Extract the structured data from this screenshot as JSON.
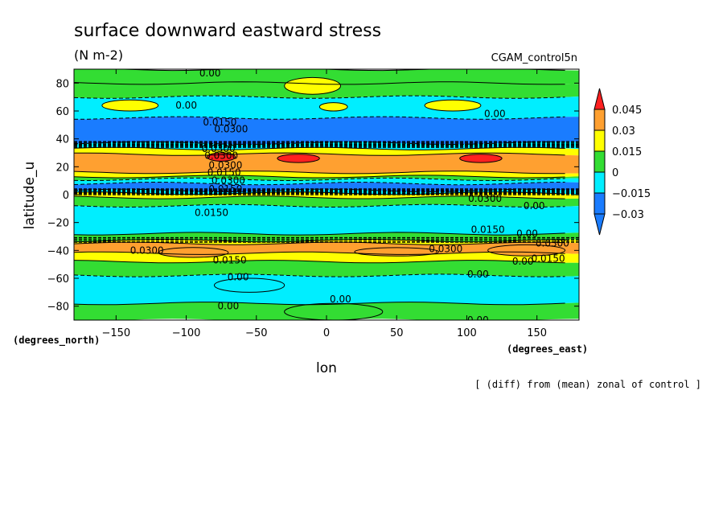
{
  "chart_data": {
    "type": "heatmap",
    "title": "surface downward eastward stress",
    "units": "(N m-2)",
    "dataset": "CGAM_control5n",
    "xlabel": "lon",
    "ylabel": "latitude_u",
    "x_units": "(degrees_east)",
    "y_units": "(degrees_north)",
    "footnote": "[ (diff) from (mean) zonal of control ]",
    "xlim": [
      -180,
      180
    ],
    "ylim": [
      -90,
      90
    ],
    "x_ticks": [
      -150,
      -100,
      -50,
      0,
      50,
      100,
      150
    ],
    "x_tick_labels": [
      "−150",
      "−100",
      "−50",
      "0",
      "50",
      "100",
      "150"
    ],
    "y_ticks": [
      80,
      60,
      40,
      20,
      0,
      -20,
      -40,
      -60,
      -80
    ],
    "y_tick_labels": [
      "80",
      "60",
      "40",
      "20",
      "0",
      "−20",
      "−40",
      "−60",
      "−80"
    ],
    "colorbar": {
      "levels": [
        0.045,
        0.03,
        0.015,
        0,
        -0.015,
        -0.03
      ],
      "labels": [
        "0.045",
        "0.03",
        "0.015",
        "0",
        "−0.015",
        "−0.03"
      ],
      "colors": [
        "#ff2020",
        "#ffa030",
        "#ffff00",
        "#33dd33",
        "#00eeff",
        "#1a7cff",
        "#1a7cff"
      ]
    },
    "bands": [
      {
        "lat": [
          80,
          90
        ],
        "level": 0
      },
      {
        "lat": [
          70,
          80
        ],
        "level": 0
      },
      {
        "lat": [
          55,
          70
        ],
        "level": -0.015
      },
      {
        "lat": [
          37,
          55
        ],
        "level": -0.03
      },
      {
        "lat": [
          33,
          37
        ],
        "level": -0.015
      },
      {
        "lat": [
          29,
          33
        ],
        "level": 0.015
      },
      {
        "lat": [
          16,
          29
        ],
        "level": 0.03
      },
      {
        "lat": [
          13,
          16
        ],
        "level": 0.015
      },
      {
        "lat": [
          11,
          13
        ],
        "level": 0
      },
      {
        "lat": [
          8,
          11
        ],
        "level": -0.015
      },
      {
        "lat": [
          3,
          8
        ],
        "level": -0.03
      },
      {
        "lat": [
          1,
          3
        ],
        "level": -0.015
      },
      {
        "lat": [
          -2,
          1
        ],
        "level": 0.015
      },
      {
        "lat": [
          -8,
          -2
        ],
        "level": 0
      },
      {
        "lat": [
          -28,
          -8
        ],
        "level": -0.015
      },
      {
        "lat": [
          -33,
          -28
        ],
        "level": 0
      },
      {
        "lat": [
          -35,
          -33
        ],
        "level": 0.015
      },
      {
        "lat": [
          -42,
          -35
        ],
        "level": 0.03
      },
      {
        "lat": [
          -48,
          -42
        ],
        "level": 0.015
      },
      {
        "lat": [
          -58,
          -48
        ],
        "level": 0
      },
      {
        "lat": [
          -78,
          -58
        ],
        "level": -0.015
      },
      {
        "lat": [
          -90,
          -78
        ],
        "level": 0
      }
    ],
    "patches": [
      {
        "lon": [
          -160,
          -120
        ],
        "lat": [
          60,
          68
        ],
        "level": 0.015
      },
      {
        "lon": [
          -30,
          10
        ],
        "lat": [
          72,
          84
        ],
        "level": 0.015
      },
      {
        "lon": [
          -5,
          15
        ],
        "lat": [
          60,
          66
        ],
        "level": 0.015
      },
      {
        "lon": [
          70,
          110
        ],
        "lat": [
          60,
          68
        ],
        "level": 0.015
      },
      {
        "lon": [
          -85,
          -65
        ],
        "lat": [
          24,
          30
        ],
        "level": 0.045
      },
      {
        "lon": [
          -35,
          -5
        ],
        "lat": [
          23,
          29
        ],
        "level": 0.045
      },
      {
        "lon": [
          95,
          125
        ],
        "lat": [
          23,
          29
        ],
        "level": 0.045
      },
      {
        "lon": [
          -120,
          -70
        ],
        "lat": [
          -45,
          -38
        ],
        "level": 0.03
      },
      {
        "lon": [
          20,
          80
        ],
        "lat": [
          -44,
          -38
        ],
        "level": 0.03
      },
      {
        "lon": [
          115,
          170
        ],
        "lat": [
          -44,
          -36
        ],
        "level": 0.03
      },
      {
        "lon": [
          -30,
          40
        ],
        "lat": [
          -90,
          -78
        ],
        "level": 0.0
      },
      {
        "lon": [
          -80,
          -30
        ],
        "lat": [
          -70,
          -60
        ],
        "level": -0.015
      }
    ],
    "contour_labels": [
      {
        "text": "0.00",
        "lon": -83,
        "lat": 87
      },
      {
        "text": "0.00",
        "lon": -100,
        "lat": 64
      },
      {
        "text": "0.0150",
        "lon": -76,
        "lat": 52
      },
      {
        "text": "0.0300",
        "lon": -68,
        "lat": 47
      },
      {
        "text": "0.00",
        "lon": 120,
        "lat": 58
      },
      {
        "text": "0.0300",
        "lon": -77,
        "lat": 33
      },
      {
        "text": "0.0300",
        "lon": -75,
        "lat": 28
      },
      {
        "text": "0.0300",
        "lon": -72,
        "lat": 21
      },
      {
        "text": "0.0150",
        "lon": -73,
        "lat": 16
      },
      {
        "text": "0.0300",
        "lon": -70,
        "lat": 10
      },
      {
        "text": "0.0150",
        "lon": -72,
        "lat": 4
      },
      {
        "text": "0.0150",
        "lon": -82,
        "lat": -13
      },
      {
        "text": "0.0300",
        "lon": 113,
        "lat": -3
      },
      {
        "text": "0.00",
        "lon": 148,
        "lat": -8
      },
      {
        "text": "0.0150",
        "lon": 115,
        "lat": -25
      },
      {
        "text": "0.00",
        "lon": 143,
        "lat": -28
      },
      {
        "text": "0.0300",
        "lon": 161,
        "lat": -35
      },
      {
        "text": "0.0300",
        "lon": -128,
        "lat": -40
      },
      {
        "text": "0.0300",
        "lon": 85,
        "lat": -39
      },
      {
        "text": "0.0150",
        "lon": 158,
        "lat": -46
      },
      {
        "text": "0.0150",
        "lon": -69,
        "lat": -47
      },
      {
        "text": "0.00",
        "lon": 140,
        "lat": -48
      },
      {
        "text": "0.00",
        "lon": -63,
        "lat": -59
      },
      {
        "text": "0.00",
        "lon": 108,
        "lat": -57
      },
      {
        "text": "0.00",
        "lon": 10,
        "lat": -75
      },
      {
        "text": "0.00",
        "lon": -70,
        "lat": -80
      },
      {
        "text": "0.00",
        "lon": 108,
        "lat": -90
      }
    ]
  }
}
